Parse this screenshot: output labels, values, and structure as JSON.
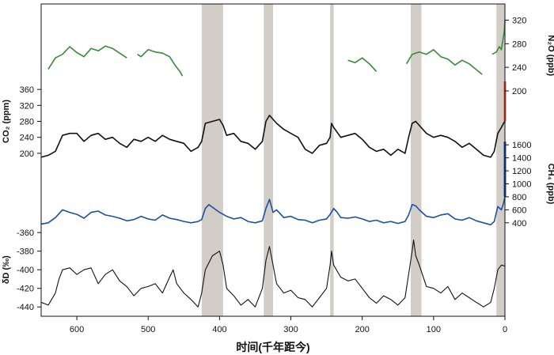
{
  "chart_data": {
    "type": "line",
    "xlabel": "时间(千年距今)",
    "x_reversed": true,
    "xlim": [
      650,
      0
    ],
    "xticks": [
      600,
      500,
      400,
      300,
      200,
      100,
      0
    ],
    "shaded_intervals_kyr_bp": [
      [
        425,
        395
      ],
      [
        338,
        325
      ],
      [
        245,
        240
      ],
      [
        132,
        117
      ],
      [
        12,
        0
      ]
    ],
    "series": [
      {
        "name": "N2O",
        "color": "#3a8a3a",
        "axis_label": "N₂O (ppb)",
        "axis_side": "right",
        "unit": "ppb",
        "ylim": [
          200,
          330
        ],
        "yticks": [
          200,
          240,
          280,
          320
        ],
        "segments": [
          [
            [
              640,
              237
            ],
            [
              630,
              256
            ],
            [
              620,
              262
            ],
            [
              610,
              275
            ],
            [
              600,
              265
            ],
            [
              590,
              258
            ],
            [
              580,
              272
            ],
            [
              570,
              268
            ],
            [
              560,
              276
            ],
            [
              550,
              272
            ],
            [
              540,
              264
            ],
            [
              530,
              256
            ]
          ],
          [
            [
              515,
              262
            ],
            [
              510,
              258
            ],
            [
              500,
              270
            ],
            [
              490,
              266
            ],
            [
              480,
              264
            ],
            [
              470,
              258
            ],
            [
              462,
              243
            ],
            [
              455,
              232
            ],
            [
              452,
              225
            ]
          ],
          [
            [
              220,
              252
            ],
            [
              210,
              248
            ],
            [
              200,
              256
            ],
            [
              190,
              246
            ],
            [
              180,
              233
            ]
          ],
          [
            [
              138,
              246
            ],
            [
              130,
              262
            ],
            [
              120,
              266
            ],
            [
              110,
              262
            ],
            [
              100,
              270
            ],
            [
              90,
              258
            ],
            [
              80,
              254
            ],
            [
              70,
              244
            ],
            [
              60,
              252
            ],
            [
              50,
              246
            ],
            [
              40,
              236
            ],
            [
              32,
              228
            ]
          ],
          [
            [
              18,
              262
            ],
            [
              12,
              266
            ],
            [
              8,
              275
            ],
            [
              5,
              270
            ],
            [
              3,
              285
            ],
            [
              1,
              300
            ],
            [
              0,
              320
            ]
          ]
        ]
      },
      {
        "name": "CO2",
        "color": "#111111",
        "axis_label": "CO₂ (ppm)",
        "axis_side": "left",
        "unit": "ppm",
        "ylim": [
          180,
          380
        ],
        "yticks": [
          200,
          240,
          280,
          320,
          360
        ],
        "points": [
          [
            650,
            190
          ],
          [
            640,
            195
          ],
          [
            630,
            205
          ],
          [
            620,
            245
          ],
          [
            610,
            250
          ],
          [
            600,
            250
          ],
          [
            590,
            230
          ],
          [
            580,
            245
          ],
          [
            570,
            250
          ],
          [
            560,
            235
          ],
          [
            550,
            240
          ],
          [
            540,
            225
          ],
          [
            530,
            215
          ],
          [
            520,
            235
          ],
          [
            510,
            230
          ],
          [
            500,
            240
          ],
          [
            490,
            230
          ],
          [
            480,
            245
          ],
          [
            470,
            235
          ],
          [
            460,
            230
          ],
          [
            450,
            225
          ],
          [
            440,
            205
          ],
          [
            430,
            215
          ],
          [
            425,
            230
          ],
          [
            420,
            275
          ],
          [
            410,
            280
          ],
          [
            400,
            285
          ],
          [
            395,
            270
          ],
          [
            390,
            245
          ],
          [
            380,
            250
          ],
          [
            370,
            230
          ],
          [
            360,
            225
          ],
          [
            350,
            210
          ],
          [
            340,
            230
          ],
          [
            335,
            280
          ],
          [
            330,
            295
          ],
          [
            320,
            275
          ],
          [
            310,
            260
          ],
          [
            300,
            250
          ],
          [
            290,
            240
          ],
          [
            280,
            210
          ],
          [
            270,
            200
          ],
          [
            260,
            220
          ],
          [
            250,
            225
          ],
          [
            245,
            240
          ],
          [
            243,
            275
          ],
          [
            240,
            265
          ],
          [
            230,
            240
          ],
          [
            220,
            245
          ],
          [
            210,
            250
          ],
          [
            200,
            235
          ],
          [
            190,
            215
          ],
          [
            180,
            205
          ],
          [
            170,
            210
          ],
          [
            160,
            195
          ],
          [
            150,
            210
          ],
          [
            140,
            200
          ],
          [
            135,
            240
          ],
          [
            130,
            275
          ],
          [
            125,
            280
          ],
          [
            120,
            270
          ],
          [
            110,
            250
          ],
          [
            100,
            240
          ],
          [
            90,
            245
          ],
          [
            80,
            240
          ],
          [
            70,
            230
          ],
          [
            60,
            215
          ],
          [
            50,
            225
          ],
          [
            40,
            210
          ],
          [
            30,
            195
          ],
          [
            20,
            190
          ],
          [
            15,
            205
          ],
          [
            10,
            250
          ],
          [
            5,
            265
          ],
          [
            2,
            275
          ],
          [
            0,
            280
          ]
        ]
      },
      {
        "name": "CO2 recent",
        "color": "#e8503a",
        "points": [
          [
            0,
            280
          ],
          [
            0,
            380
          ]
        ]
      },
      {
        "name": "CH4",
        "color": "#1e4fa0",
        "axis_label": "CH₄ (ppb)",
        "axis_side": "right",
        "unit": "ppb",
        "ylim": [
          300,
          1700
        ],
        "yticks": [
          400,
          600,
          800,
          1000,
          1200,
          1400,
          1600
        ],
        "points": [
          [
            650,
            380
          ],
          [
            640,
            400
          ],
          [
            630,
            480
          ],
          [
            620,
            600
          ],
          [
            610,
            560
          ],
          [
            600,
            530
          ],
          [
            590,
            470
          ],
          [
            580,
            560
          ],
          [
            570,
            580
          ],
          [
            560,
            520
          ],
          [
            550,
            500
          ],
          [
            540,
            470
          ],
          [
            530,
            430
          ],
          [
            520,
            450
          ],
          [
            510,
            500
          ],
          [
            500,
            460
          ],
          [
            490,
            440
          ],
          [
            480,
            520
          ],
          [
            470,
            470
          ],
          [
            460,
            450
          ],
          [
            450,
            420
          ],
          [
            440,
            400
          ],
          [
            430,
            420
          ],
          [
            425,
            450
          ],
          [
            420,
            620
          ],
          [
            415,
            680
          ],
          [
            410,
            640
          ],
          [
            400,
            560
          ],
          [
            390,
            500
          ],
          [
            380,
            460
          ],
          [
            370,
            480
          ],
          [
            360,
            420
          ],
          [
            350,
            400
          ],
          [
            340,
            430
          ],
          [
            335,
            620
          ],
          [
            330,
            760
          ],
          [
            325,
            560
          ],
          [
            320,
            600
          ],
          [
            310,
            480
          ],
          [
            300,
            500
          ],
          [
            290,
            450
          ],
          [
            280,
            440
          ],
          [
            270,
            400
          ],
          [
            260,
            440
          ],
          [
            250,
            460
          ],
          [
            245,
            530
          ],
          [
            240,
            620
          ],
          [
            235,
            560
          ],
          [
            230,
            480
          ],
          [
            220,
            470
          ],
          [
            210,
            490
          ],
          [
            200,
            460
          ],
          [
            190,
            420
          ],
          [
            180,
            440
          ],
          [
            170,
            400
          ],
          [
            160,
            420
          ],
          [
            150,
            390
          ],
          [
            140,
            420
          ],
          [
            135,
            520
          ],
          [
            130,
            680
          ],
          [
            125,
            660
          ],
          [
            120,
            600
          ],
          [
            110,
            500
          ],
          [
            100,
            480
          ],
          [
            90,
            520
          ],
          [
            80,
            540
          ],
          [
            70,
            460
          ],
          [
            60,
            440
          ],
          [
            50,
            480
          ],
          [
            40,
            430
          ],
          [
            30,
            400
          ],
          [
            20,
            370
          ],
          [
            15,
            420
          ],
          [
            10,
            650
          ],
          [
            5,
            600
          ],
          [
            2,
            700
          ],
          [
            0,
            800
          ]
        ]
      },
      {
        "name": "CH4 recent",
        "color": "#1e4fa0",
        "points": [
          [
            0,
            800
          ],
          [
            0,
            1650
          ]
        ]
      },
      {
        "name": "δD",
        "color": "#111111",
        "axis_label": "δD (‰)",
        "axis_side": "left",
        "unit": "‰",
        "ylim": [
          -450,
          -365
        ],
        "yticks": [
          -440,
          -420,
          -400,
          -380,
          -360
        ],
        "points": [
          [
            650,
            -435
          ],
          [
            640,
            -438
          ],
          [
            630,
            -425
          ],
          [
            625,
            -410
          ],
          [
            620,
            -400
          ],
          [
            610,
            -398
          ],
          [
            600,
            -405
          ],
          [
            590,
            -400
          ],
          [
            580,
            -398
          ],
          [
            570,
            -415
          ],
          [
            560,
            -405
          ],
          [
            550,
            -400
          ],
          [
            540,
            -412
          ],
          [
            530,
            -418
          ],
          [
            520,
            -428
          ],
          [
            510,
            -420
          ],
          [
            500,
            -418
          ],
          [
            490,
            -415
          ],
          [
            480,
            -425
          ],
          [
            470,
            -408
          ],
          [
            465,
            -400
          ],
          [
            460,
            -415
          ],
          [
            450,
            -425
          ],
          [
            440,
            -432
          ],
          [
            430,
            -440
          ],
          [
            425,
            -425
          ],
          [
            420,
            -400
          ],
          [
            410,
            -385
          ],
          [
            400,
            -380
          ],
          [
            395,
            -395
          ],
          [
            390,
            -420
          ],
          [
            380,
            -428
          ],
          [
            370,
            -438
          ],
          [
            360,
            -432
          ],
          [
            350,
            -440
          ],
          [
            340,
            -420
          ],
          [
            335,
            -390
          ],
          [
            330,
            -375
          ],
          [
            325,
            -395
          ],
          [
            320,
            -415
          ],
          [
            310,
            -425
          ],
          [
            300,
            -422
          ],
          [
            290,
            -430
          ],
          [
            280,
            -432
          ],
          [
            270,
            -440
          ],
          [
            260,
            -430
          ],
          [
            250,
            -420
          ],
          [
            245,
            -395
          ],
          [
            243,
            -380
          ],
          [
            240,
            -395
          ],
          [
            230,
            -408
          ],
          [
            220,
            -412
          ],
          [
            210,
            -410
          ],
          [
            200,
            -420
          ],
          [
            190,
            -430
          ],
          [
            180,
            -436
          ],
          [
            170,
            -428
          ],
          [
            160,
            -432
          ],
          [
            150,
            -438
          ],
          [
            140,
            -430
          ],
          [
            135,
            -405
          ],
          [
            130,
            -380
          ],
          [
            128,
            -368
          ],
          [
            125,
            -385
          ],
          [
            120,
            -395
          ],
          [
            110,
            -418
          ],
          [
            100,
            -420
          ],
          [
            90,
            -425
          ],
          [
            80,
            -418
          ],
          [
            70,
            -432
          ],
          [
            60,
            -425
          ],
          [
            50,
            -430
          ],
          [
            40,
            -435
          ],
          [
            30,
            -440
          ],
          [
            20,
            -435
          ],
          [
            15,
            -420
          ],
          [
            10,
            -400
          ],
          [
            5,
            -395
          ],
          [
            0,
            -396
          ]
        ]
      }
    ]
  }
}
